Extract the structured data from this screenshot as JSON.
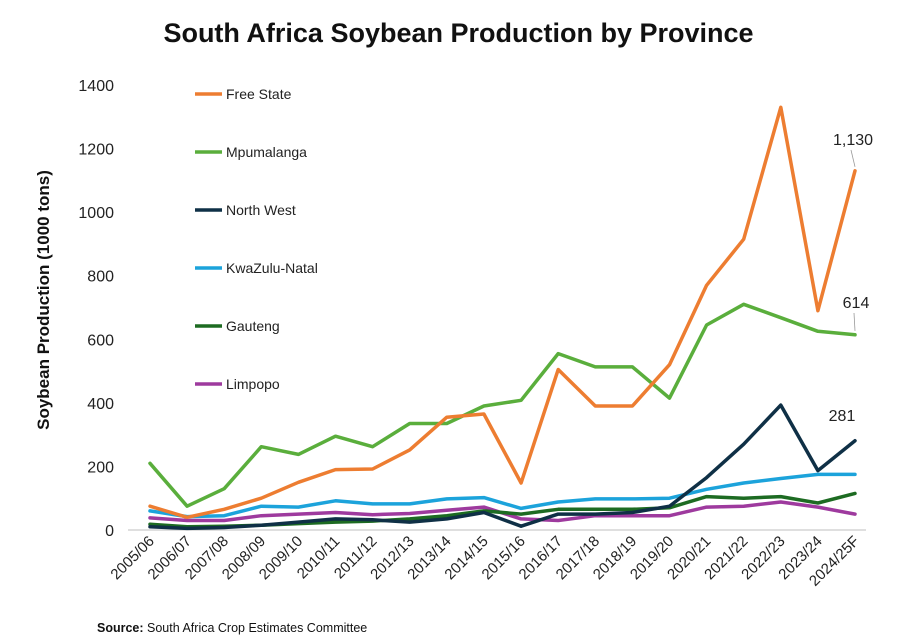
{
  "chart_data": {
    "type": "line",
    "title": "South Africa Soybean Production by Province",
    "ylabel": "Soybean Production (1000 tons)",
    "xlabel": "",
    "ylim": [
      0,
      1400
    ],
    "yticks": [
      "0",
      "200",
      "400",
      "600",
      "800",
      "1000",
      "1200",
      "1400"
    ],
    "grid": false,
    "legend_position": "top-left inside plot",
    "categories": [
      "2005/06",
      "2006/07",
      "2007/08",
      "2008/09",
      "2009/10",
      "2010/11",
      "2011/12",
      "2012/13",
      "2013/14",
      "2014/15",
      "2015/16",
      "2016/17",
      "2017/18",
      "2018/19",
      "2019/20",
      "2020/21",
      "2021/22",
      "2022/23",
      "2023/24",
      "2024/25F"
    ],
    "series": [
      {
        "name": "Free State",
        "color": "#ED7D31",
        "values": [
          75,
          40,
          65,
          100,
          150,
          190,
          192,
          252,
          355,
          365,
          148,
          505,
          390,
          390,
          520,
          770,
          915,
          1330,
          690,
          1130
        ]
      },
      {
        "name": "Mpumalanga",
        "color": "#5AAE3C",
        "values": [
          210,
          75,
          130,
          262,
          238,
          295,
          262,
          335,
          335,
          390,
          408,
          555,
          513,
          513,
          415,
          645,
          710,
          668,
          625,
          614
        ]
      },
      {
        "name": "North West",
        "color": "#0F3046",
        "values": [
          10,
          5,
          8,
          15,
          25,
          35,
          32,
          25,
          35,
          55,
          12,
          50,
          50,
          55,
          75,
          165,
          270,
          393,
          187,
          281
        ]
      },
      {
        "name": "KwaZulu-Natal",
        "color": "#1CA3DB",
        "values": [
          60,
          42,
          45,
          75,
          72,
          92,
          82,
          82,
          98,
          102,
          68,
          88,
          98,
          98,
          100,
          128,
          148,
          162,
          175,
          175
        ]
      },
      {
        "name": "Gauteng",
        "color": "#1D6B22",
        "values": [
          18,
          10,
          12,
          15,
          20,
          25,
          28,
          35,
          45,
          60,
          50,
          65,
          65,
          65,
          70,
          105,
          100,
          105,
          85,
          115
        ]
      },
      {
        "name": "Limpopo",
        "color": "#9E3A9E",
        "values": [
          38,
          30,
          30,
          45,
          50,
          55,
          48,
          52,
          62,
          72,
          35,
          30,
          45,
          45,
          45,
          72,
          75,
          88,
          72,
          50
        ]
      }
    ],
    "annotations": [
      {
        "series": "Free State",
        "category": "2024/25F",
        "text": "1,130"
      },
      {
        "series": "Mpumalanga",
        "category": "2024/25F",
        "text": "614"
      },
      {
        "series": "North West",
        "category": "2024/25F",
        "text": "281"
      }
    ]
  },
  "source": {
    "label": "Source:",
    "text": " South Africa Crop Estimates Committee"
  }
}
